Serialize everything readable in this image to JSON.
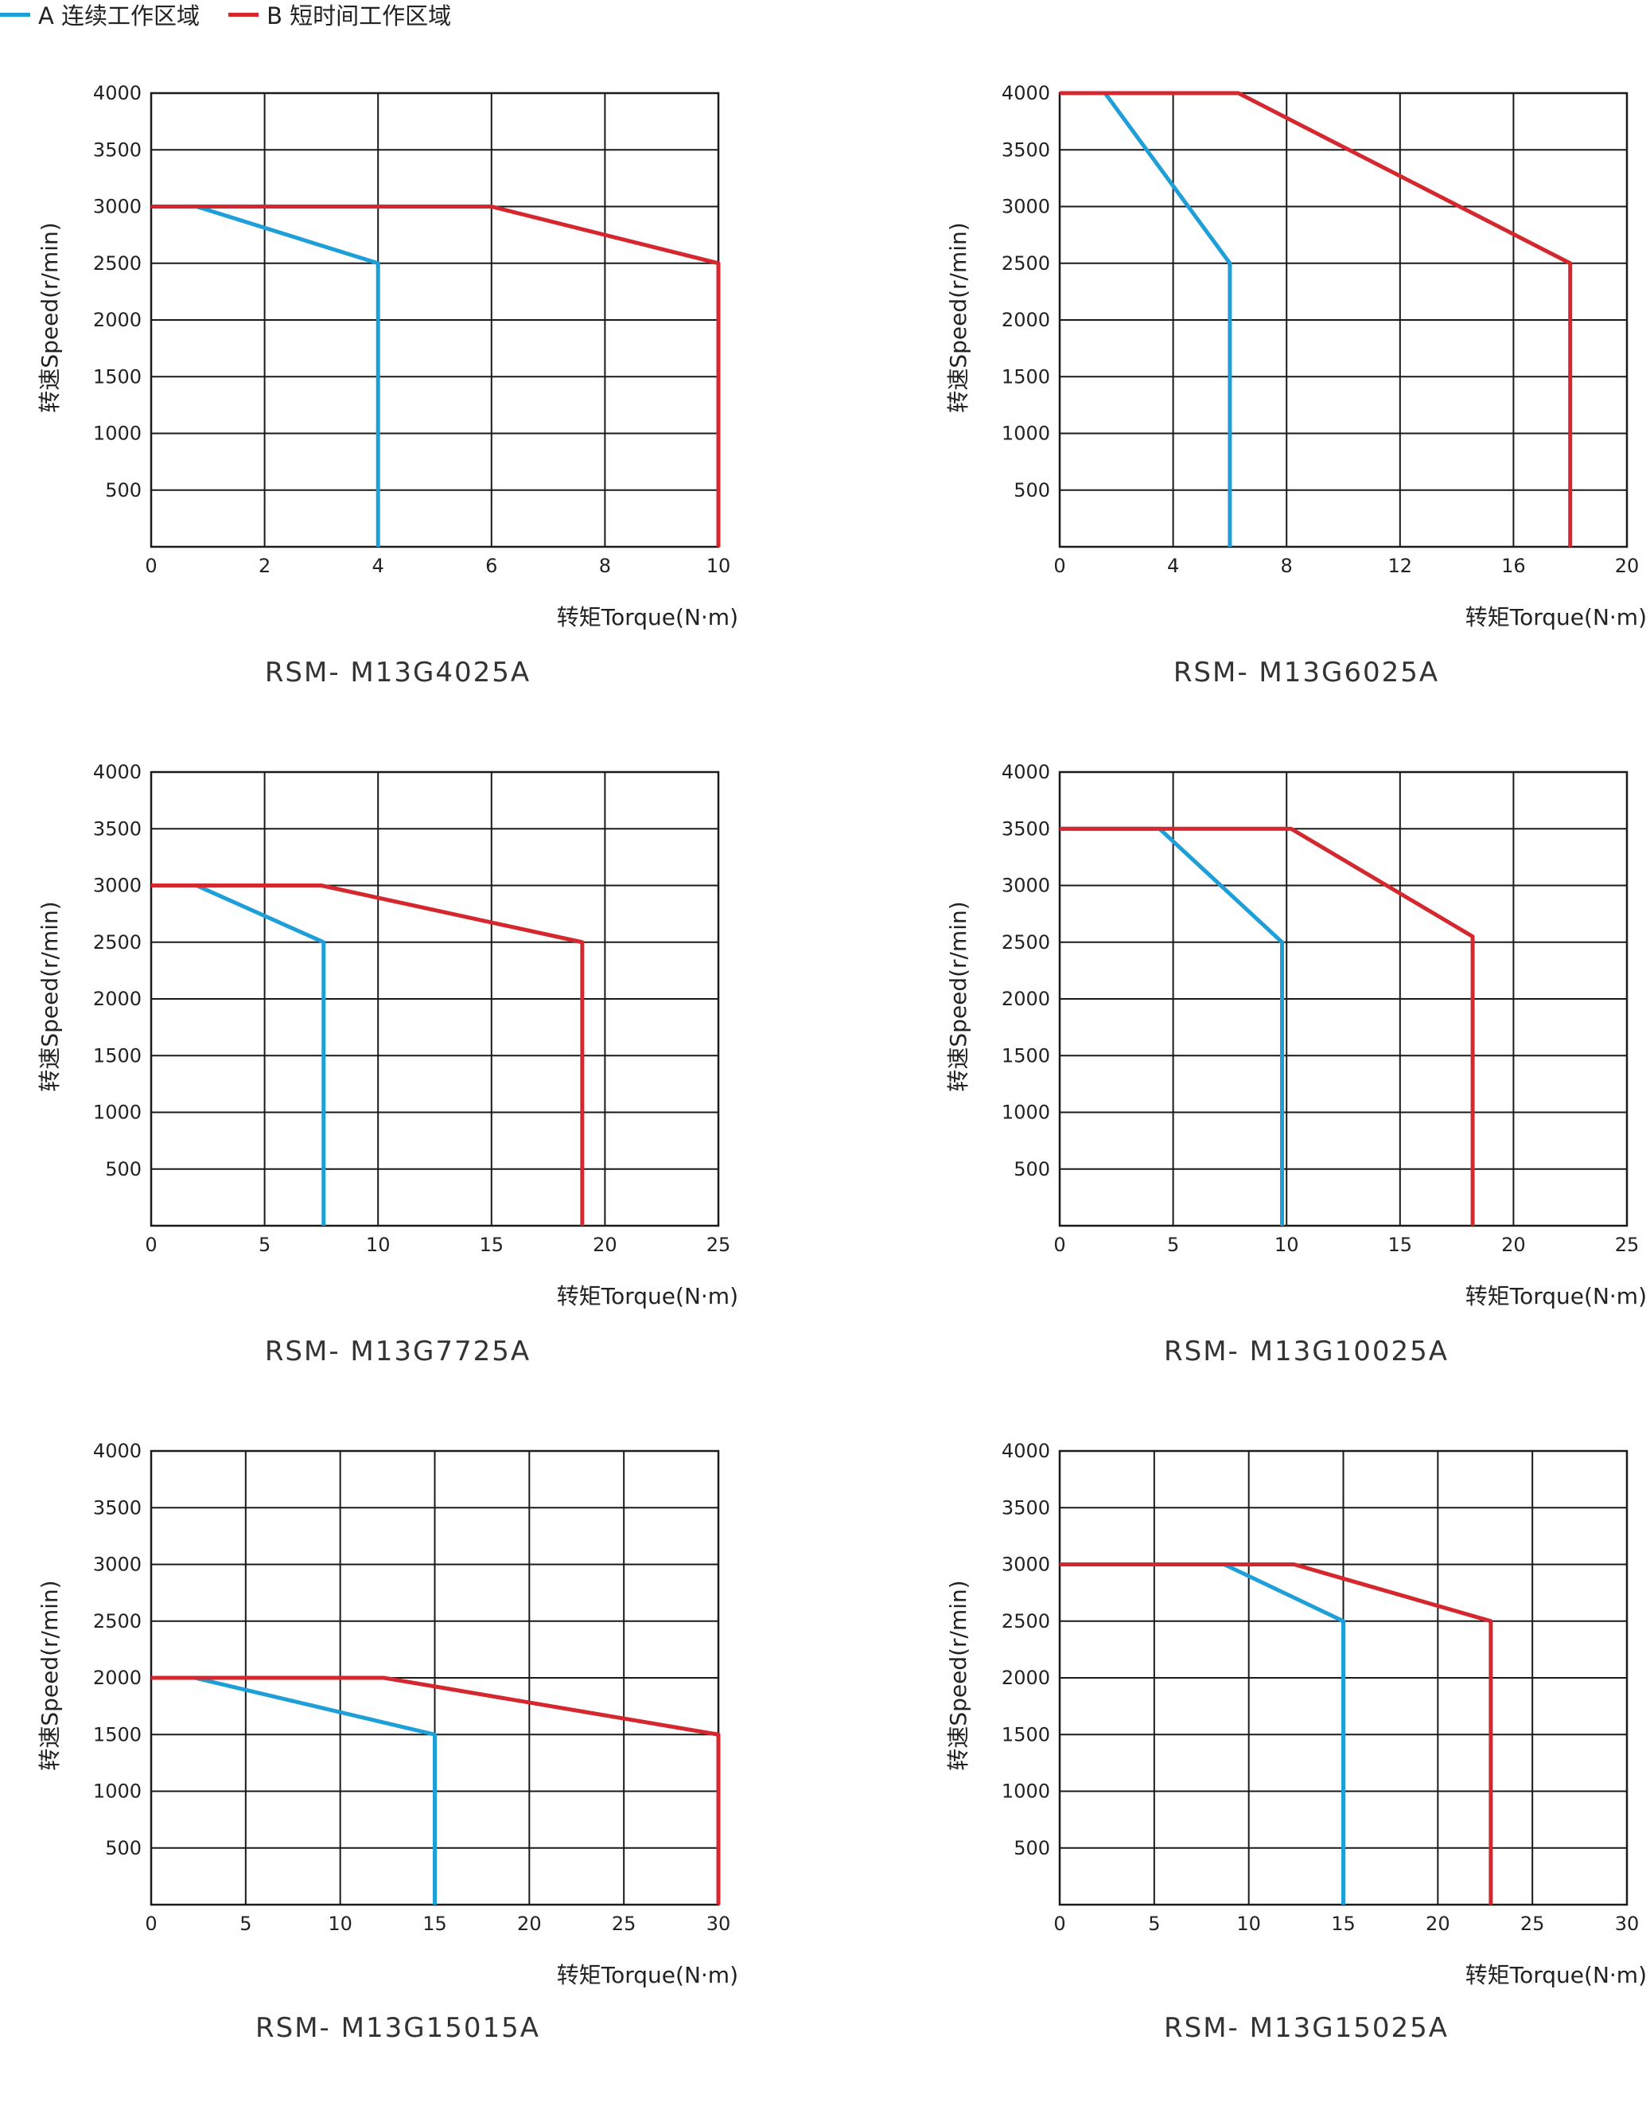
{
  "legend": {
    "items": [
      {
        "label": "A 连续工作区域",
        "color": "#1e9fd8"
      },
      {
        "label": "B 短时间工作区域",
        "color": "#d4272e"
      }
    ]
  },
  "chart_data": [
    {
      "type": "line",
      "title": "RSM- M13G4025A",
      "xlabel": "转矩Torque(N·m)",
      "ylabel": "转速Speed(r/min)",
      "xlim": [
        0,
        10
      ],
      "ylim": [
        0,
        4000
      ],
      "xticks": [
        0,
        2,
        4,
        6,
        8,
        10
      ],
      "yticks": [
        500,
        1000,
        1500,
        2000,
        2500,
        3000,
        3500,
        4000
      ],
      "grid": true,
      "series": [
        {
          "name": "A",
          "color": "#1e9fd8",
          "x": [
            0,
            0.8,
            4,
            4
          ],
          "y": [
            3000,
            3000,
            2500,
            0
          ]
        },
        {
          "name": "B",
          "color": "#d4272e",
          "x": [
            0,
            6,
            10,
            10
          ],
          "y": [
            3000,
            3000,
            2500,
            0
          ]
        }
      ]
    },
    {
      "type": "line",
      "title": "RSM- M13G6025A",
      "xlabel": "转矩Torque(N·m)",
      "ylabel": "转速Speed(r/min)",
      "xlim": [
        0,
        20
      ],
      "ylim": [
        0,
        4000
      ],
      "xticks": [
        0,
        4,
        8,
        12,
        16,
        20
      ],
      "yticks": [
        500,
        1000,
        1500,
        2000,
        2500,
        3000,
        3500,
        4000
      ],
      "grid": true,
      "series": [
        {
          "name": "A",
          "color": "#1e9fd8",
          "x": [
            0,
            1.6,
            6,
            6
          ],
          "y": [
            4000,
            4000,
            2500,
            0
          ]
        },
        {
          "name": "B",
          "color": "#d4272e",
          "x": [
            0,
            6.3,
            18,
            18
          ],
          "y": [
            4000,
            4000,
            2500,
            0
          ]
        }
      ]
    },
    {
      "type": "line",
      "title": "RSM- M13G7725A",
      "xlabel": "转矩Torque(N·m)",
      "ylabel": "转速Speed(r/min)",
      "xlim": [
        0,
        25
      ],
      "ylim": [
        0,
        4000
      ],
      "xticks": [
        0,
        5,
        10,
        15,
        20,
        25
      ],
      "yticks": [
        500,
        1000,
        1500,
        2000,
        2500,
        3000,
        3500,
        4000
      ],
      "grid": true,
      "series": [
        {
          "name": "A",
          "color": "#1e9fd8",
          "x": [
            0,
            2,
            7.6,
            7.6
          ],
          "y": [
            3000,
            3000,
            2500,
            0
          ]
        },
        {
          "name": "B",
          "color": "#d4272e",
          "x": [
            0,
            7.5,
            19,
            19
          ],
          "y": [
            3000,
            3000,
            2500,
            0
          ]
        }
      ]
    },
    {
      "type": "line",
      "title": "RSM- M13G10025A",
      "xlabel": "转矩Torque(N·m)",
      "ylabel": "转速Speed(r/min)",
      "xlim": [
        0,
        25
      ],
      "ylim": [
        0,
        4000
      ],
      "xticks": [
        0,
        5,
        10,
        15,
        20,
        25
      ],
      "yticks": [
        500,
        1000,
        1500,
        2000,
        2500,
        3000,
        3500,
        4000
      ],
      "grid": true,
      "series": [
        {
          "name": "A",
          "color": "#1e9fd8",
          "x": [
            0,
            4.4,
            9.8,
            9.8
          ],
          "y": [
            3500,
            3500,
            2500,
            0
          ]
        },
        {
          "name": "B",
          "color": "#d4272e",
          "x": [
            0,
            10.2,
            18.2,
            18.2
          ],
          "y": [
            3500,
            3500,
            2550,
            0
          ]
        }
      ]
    },
    {
      "type": "line",
      "title": "RSM- M13G15015A",
      "xlabel": "转矩Torque(N·m)",
      "ylabel": "转速Speed(r/min)",
      "xlim": [
        0,
        30
      ],
      "ylim": [
        0,
        4000
      ],
      "xticks": [
        0,
        5,
        10,
        15,
        20,
        25,
        30
      ],
      "yticks": [
        500,
        1000,
        1500,
        2000,
        2500,
        3000,
        3500,
        4000
      ],
      "grid": true,
      "series": [
        {
          "name": "A",
          "color": "#1e9fd8",
          "x": [
            0,
            2.3,
            15,
            15
          ],
          "y": [
            2000,
            2000,
            1500,
            0
          ]
        },
        {
          "name": "B",
          "color": "#d4272e",
          "x": [
            0,
            12.3,
            30,
            30
          ],
          "y": [
            2000,
            2000,
            1500,
            0
          ]
        }
      ]
    },
    {
      "type": "line",
      "title": "RSM- M13G15025A",
      "xlabel": "转矩Torque(N·m)",
      "ylabel": "转速Speed(r/min)",
      "xlim": [
        0,
        30
      ],
      "ylim": [
        0,
        4000
      ],
      "xticks": [
        0,
        5,
        10,
        15,
        20,
        25,
        30
      ],
      "yticks": [
        500,
        1000,
        1500,
        2000,
        2500,
        3000,
        3500,
        4000
      ],
      "grid": true,
      "series": [
        {
          "name": "A",
          "color": "#1e9fd8",
          "x": [
            0,
            8.7,
            15,
            15
          ],
          "y": [
            3000,
            3000,
            2500,
            0
          ]
        },
        {
          "name": "B",
          "color": "#d4272e",
          "x": [
            0,
            12.4,
            22.8,
            22.8
          ],
          "y": [
            3000,
            3000,
            2500,
            0
          ]
        }
      ]
    }
  ]
}
